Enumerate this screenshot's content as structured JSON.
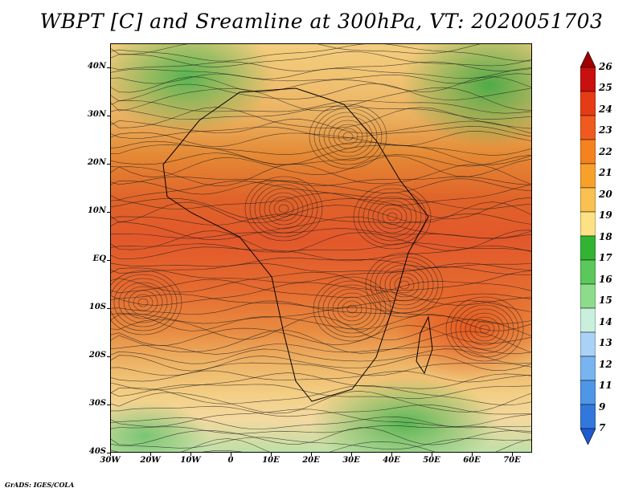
{
  "title": "WBPT [C] and Sreamline at 300hPa, VT: 2020051703",
  "footer": "GrADS: IGES/COLA",
  "map": {
    "lat_labels": [
      "40N",
      "30N",
      "20N",
      "10N",
      "EQ",
      "10S",
      "20S",
      "30S",
      "40S"
    ],
    "lon_labels": [
      "30W",
      "20W",
      "10W",
      "0",
      "10E",
      "20E",
      "30E",
      "40E",
      "50E",
      "60E",
      "70E"
    ],
    "lat_range": [
      -40,
      45
    ],
    "lon_range": [
      -30,
      75
    ]
  },
  "colorbar": {
    "labels": [
      "26",
      "25",
      "24",
      "23",
      "22",
      "21",
      "20",
      "19",
      "18",
      "17",
      "16",
      "15",
      "14",
      "13",
      "12",
      "11",
      "9",
      "7"
    ],
    "colors": [
      "#a00000",
      "#c81010",
      "#e63c14",
      "#f05a1e",
      "#f5821e",
      "#f8a02c",
      "#fac050",
      "#fde184",
      "#32b432",
      "#5ac85a",
      "#8cdc8c",
      "#c8f0dc",
      "#aad2f8",
      "#78b4f0",
      "#5096e6",
      "#3278dc",
      "#1e5ad2"
    ]
  }
}
